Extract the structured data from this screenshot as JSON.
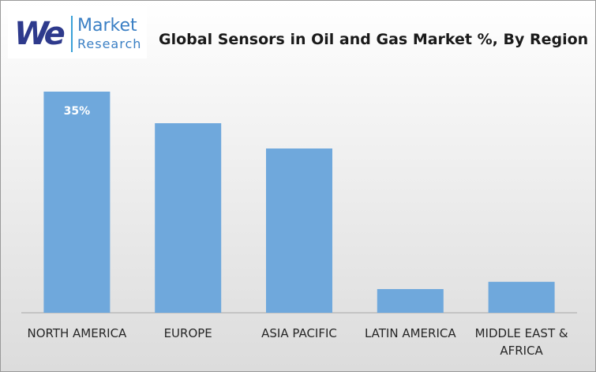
{
  "logo": {
    "mark": "We",
    "line1": "Market",
    "line2": "Research"
  },
  "chart_data": {
    "type": "bar",
    "title": "Global Sensors in Oil and Gas Market %, By Region",
    "categories": [
      "NORTH AMERICA",
      "EUROPE",
      "ASIA PACIFIC",
      "LATIN AMERICA",
      "MIDDLE EAST & AFRICA"
    ],
    "values": [
      35,
      30,
      26,
      3.75,
      4.9
    ],
    "value_labels": [
      "35%",
      null,
      null,
      null,
      null
    ],
    "color": "#6fa8dc"
  }
}
